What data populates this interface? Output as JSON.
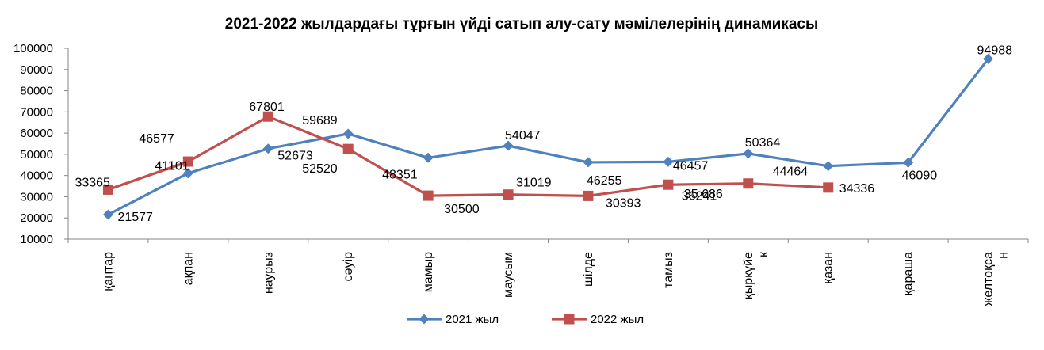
{
  "chart_data": {
    "type": "line",
    "title": "2021-2022 жылдардағы тұрғын үйді сатып алу-сату мәмілелерінің динамикасы",
    "xlabel": "",
    "ylabel": "",
    "ylim": [
      10000,
      100000
    ],
    "y_ticks": [
      "100000",
      "90000",
      "80000",
      "70000",
      "60000",
      "50000",
      "40000",
      "30000",
      "20000",
      "10000"
    ],
    "categories": [
      [
        "қаңтар"
      ],
      [
        "ақпан"
      ],
      [
        "наурыз"
      ],
      [
        "сәуір"
      ],
      [
        "мамыр"
      ],
      [
        "маусым"
      ],
      [
        "шілде"
      ],
      [
        "тамыз"
      ],
      [
        "қыркүйе",
        "к"
      ],
      [
        "қазан"
      ],
      [
        "қараша"
      ],
      [
        "желтоқса",
        "н"
      ]
    ],
    "grid": false,
    "legend_position": "bottom",
    "series": [
      {
        "name": "2021 жыл",
        "color": "#4F81BD",
        "marker": "diamond",
        "values": [
          21577,
          41101,
          52673,
          59689,
          48351,
          54047,
          46255,
          46457,
          50364,
          44464,
          46090,
          94988
        ],
        "labels": [
          "21577",
          "41101",
          "52673",
          "59689",
          "48351",
          "54047",
          "46255",
          "46457",
          "50364",
          "44464",
          "46090",
          "94988"
        ]
      },
      {
        "name": "2022 жыл",
        "color": "#C0504D",
        "marker": "square",
        "values": [
          33365,
          46577,
          67801,
          52520,
          30500,
          31019,
          30393,
          35686,
          36241,
          34336,
          null,
          null
        ],
        "labels": [
          "33365",
          "46577",
          "67801",
          "52520",
          "30500",
          "31019",
          "30393",
          "35 686",
          "36241",
          "34336",
          "",
          ""
        ]
      }
    ]
  }
}
